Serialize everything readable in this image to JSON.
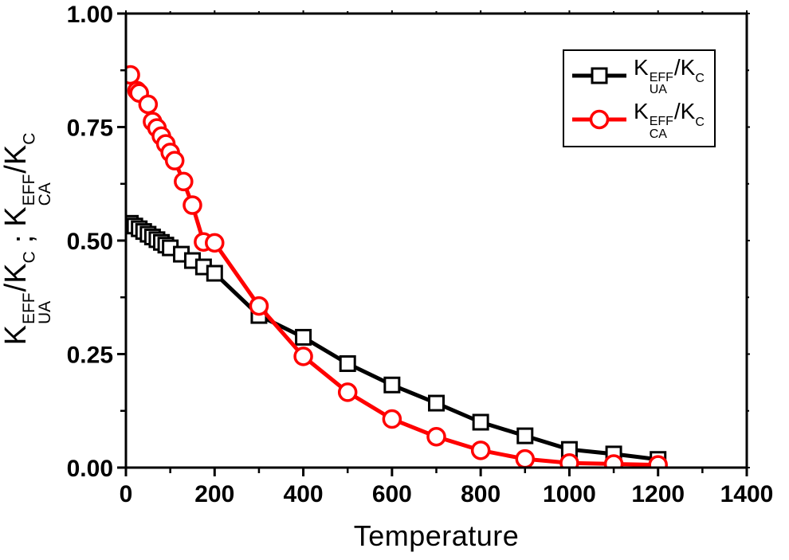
{
  "chart_data": {
    "type": "line",
    "xlabel": "Temperature",
    "ylabel_separator": ";",
    "xlim": [
      0,
      1400
    ],
    "ylim": [
      0.0,
      1.0
    ],
    "grid": false,
    "legend_position": "upper right",
    "xticks": {
      "values": [
        0,
        200,
        400,
        600,
        800,
        1000,
        1200,
        1400
      ],
      "labels": [
        "0",
        "200",
        "400",
        "600",
        "800",
        "1000",
        "1200",
        "1400"
      ],
      "minor": [
        100,
        300,
        500,
        700,
        900,
        1100,
        1300
      ]
    },
    "yticks": {
      "values": [
        0.0,
        0.25,
        0.5,
        0.75,
        1.0
      ],
      "labels": [
        "0.00",
        "0.25",
        "0.50",
        "0.75",
        "1.00"
      ],
      "minor": [
        0.125,
        0.375,
        0.625,
        0.875
      ]
    },
    "series": [
      {
        "name": "K_UA_EFF / K_C",
        "label": {
          "base": "K",
          "sup": "EFF",
          "sub": "UA",
          "denom": "/K",
          "denom_sub": "C"
        },
        "color": "#000000",
        "marker": "square",
        "marker_fill": "#ffffff",
        "line_width": 5,
        "x": [
          10,
          20,
          30,
          40,
          50,
          60,
          70,
          80,
          90,
          100,
          125,
          150,
          175,
          200,
          300,
          400,
          500,
          600,
          700,
          800,
          900,
          1000,
          1100,
          1200
        ],
        "y": [
          0.538,
          0.532,
          0.526,
          0.52,
          0.514,
          0.508,
          0.502,
          0.496,
          0.49,
          0.484,
          0.47,
          0.456,
          0.442,
          0.428,
          0.335,
          0.287,
          0.229,
          0.182,
          0.142,
          0.1,
          0.07,
          0.04,
          0.03,
          0.018
        ]
      },
      {
        "name": "K_CA_EFF / K_C",
        "label": {
          "base": "K",
          "sup": "EFF",
          "sub": "CA",
          "denom": "/K",
          "denom_sub": "C"
        },
        "color": "#ff0000",
        "marker": "circle",
        "marker_fill": "#ffffff",
        "line_width": 5,
        "x": [
          10,
          25,
          30,
          50,
          60,
          70,
          80,
          90,
          100,
          110,
          130,
          150,
          175,
          200,
          300,
          400,
          500,
          600,
          700,
          800,
          900,
          1000,
          1100,
          1200
        ],
        "y": [
          0.865,
          0.83,
          0.825,
          0.8,
          0.762,
          0.748,
          0.73,
          0.713,
          0.694,
          0.676,
          0.63,
          0.578,
          0.497,
          0.495,
          0.356,
          0.245,
          0.166,
          0.107,
          0.068,
          0.038,
          0.019,
          0.01,
          0.008,
          0.006
        ]
      }
    ],
    "axis_color": "#000000",
    "background_color": "#ffffff",
    "tick_label_color": "#000000"
  }
}
